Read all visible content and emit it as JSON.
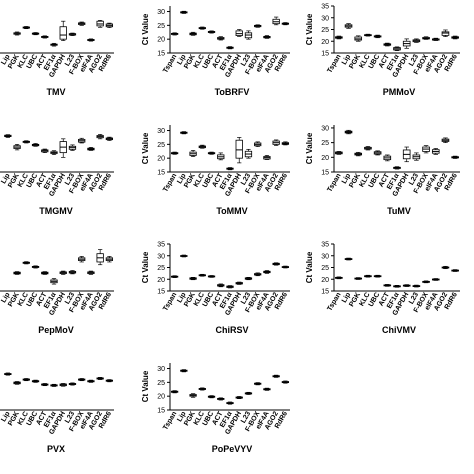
{
  "chart_data": [
    {
      "type": "box",
      "title": "TMV",
      "ylabel": "",
      "yticks": [],
      "ylim": [
        15,
        32
      ],
      "categories": [
        "Tspan",
        "Lip",
        "PGK",
        "KLC",
        "UBC",
        "ACT",
        "EF1α",
        "GAPDH",
        "L23",
        "F-BOX",
        "eIF4A",
        "AGO2",
        "RdR6"
      ],
      "boxes": [
        [
          null,
          null,
          null,
          null,
          null
        ],
        [
          null,
          null,
          null,
          null,
          null
        ],
        [
          21.5,
          21.8,
          22.0,
          22.3,
          22.6
        ],
        [
          23.8,
          24.0,
          24.2,
          24.4,
          24.6
        ],
        [
          21.6,
          21.8,
          22.0,
          22.2,
          22.4
        ],
        [
          20.4,
          20.6,
          20.8,
          21.0,
          21.2
        ],
        [
          17.5,
          17.8,
          18.0,
          18.2,
          18.5
        ],
        [
          19.5,
          20.0,
          21.5,
          24.5,
          26.5
        ],
        [
          21.3,
          21.5,
          21.8,
          22.0,
          22.2
        ],
        [
          25.0,
          25.3,
          25.6,
          25.9,
          26.2
        ],
        [
          19.3,
          19.5,
          19.7,
          19.9,
          20.1
        ],
        [
          24.3,
          24.8,
          25.5,
          26.5,
          26.8
        ],
        [
          24.2,
          24.5,
          25.0,
          25.5,
          25.8
        ]
      ]
    },
    {
      "type": "box",
      "title": "ToBRFV",
      "ylabel": "Ct Value",
      "yticks": [
        15,
        20,
        25,
        30
      ],
      "ylim": [
        15,
        32
      ],
      "categories": [
        "Tspan",
        "Lip",
        "PGK",
        "KLC",
        "UBC",
        "ACT",
        "EF1α",
        "GAPDH",
        "L23",
        "F-BOX",
        "eIF4A",
        "AGO2",
        "RdR6"
      ],
      "boxes": [
        [
          21.5,
          21.7,
          21.9,
          22.1,
          22.3
        ],
        [
          29.3,
          29.5,
          29.7,
          29.9,
          30.1
        ],
        [
          21.4,
          21.6,
          21.9,
          22.2,
          22.5
        ],
        [
          23.6,
          23.8,
          24.0,
          24.2,
          24.4
        ],
        [
          22.2,
          22.4,
          22.6,
          22.8,
          23.0
        ],
        [
          19.7,
          20.0,
          20.3,
          20.6,
          20.9
        ],
        [
          16.5,
          16.7,
          16.9,
          17.1,
          17.3
        ],
        [
          21.0,
          21.3,
          22.0,
          23.0,
          23.5
        ],
        [
          20.0,
          20.5,
          21.5,
          22.3,
          23.0
        ],
        [
          24.3,
          24.5,
          24.8,
          25.0,
          25.2
        ],
        [
          20.3,
          20.5,
          20.8,
          21.0,
          21.3
        ],
        [
          25.2,
          25.6,
          26.3,
          27.2,
          28.0
        ],
        [
          25.2,
          25.4,
          25.6,
          25.8,
          26.0
        ]
      ]
    },
    {
      "type": "box",
      "title": "PMMoV",
      "ylabel": "Ct Value",
      "yticks": [
        15,
        20,
        25,
        30,
        35
      ],
      "ylim": [
        15,
        35
      ],
      "categories": [
        "Tspan",
        "Lip",
        "PGK",
        "KLC",
        "UBC",
        "ACT",
        "EF1α",
        "GAPDH",
        "L23",
        "F-BOX",
        "eIF4A",
        "AGO2",
        "RdR6"
      ],
      "boxes": [
        [
          21.0,
          21.3,
          21.6,
          21.9,
          22.2
        ],
        [
          25.5,
          26.0,
          26.5,
          27.0,
          27.5
        ],
        [
          20.0,
          20.5,
          21.0,
          21.8,
          22.3
        ],
        [
          22.2,
          22.4,
          22.6,
          22.8,
          23.0
        ],
        [
          21.5,
          21.8,
          22.0,
          22.3,
          22.6
        ],
        [
          18.0,
          18.3,
          18.6,
          18.9,
          19.2
        ],
        [
          16.0,
          16.3,
          16.8,
          17.3,
          17.6
        ],
        [
          17.0,
          18.0,
          19.0,
          20.0,
          21.0
        ],
        [
          19.5,
          19.8,
          20.2,
          20.6,
          21.0
        ],
        [
          20.8,
          21.0,
          21.3,
          21.6,
          21.9
        ],
        [
          20.3,
          20.5,
          20.8,
          21.0,
          21.3
        ],
        [
          22.0,
          22.5,
          23.5,
          24.0,
          24.8
        ],
        [
          21.0,
          21.3,
          21.6,
          21.9,
          22.2
        ]
      ]
    },
    {
      "type": "box",
      "title": "TMGMV",
      "ylabel": "",
      "yticks": [],
      "ylim": [
        15,
        32
      ],
      "categories": [
        "Tspan",
        "Lip",
        "PGK",
        "KLC",
        "UBC",
        "ACT",
        "EF1α",
        "GAPDH",
        "L23",
        "F-BOX",
        "eIF4A",
        "AGO2",
        "RdR6"
      ],
      "boxes": [
        [
          null,
          null,
          null,
          null,
          null
        ],
        [
          27.5,
          27.8,
          28.0,
          28.3,
          28.5
        ],
        [
          23.0,
          23.5,
          24.0,
          24.5,
          25.0
        ],
        [
          25.5,
          25.7,
          25.9,
          26.1,
          26.3
        ],
        [
          24.3,
          24.5,
          24.8,
          25.0,
          25.3
        ],
        [
          22.0,
          22.3,
          22.7,
          23.0,
          23.3
        ],
        [
          21.3,
          21.7,
          22.0,
          22.3,
          22.7
        ],
        [
          20.3,
          22.0,
          24.0,
          26.0,
          27.0
        ],
        [
          22.8,
          23.2,
          23.8,
          24.3,
          24.8
        ],
        [
          25.5,
          25.8,
          26.3,
          26.8,
          27.2
        ],
        [
          22.8,
          23.0,
          23.3,
          23.6,
          23.9
        ],
        [
          27.0,
          27.4,
          27.8,
          28.2,
          28.6
        ],
        [
          26.4,
          26.7,
          27.0,
          27.3,
          27.6
        ]
      ]
    },
    {
      "type": "box",
      "title": "ToMMV",
      "ylabel": "Ct Value",
      "yticks": [
        15,
        20,
        25,
        30
      ],
      "ylim": [
        15,
        32
      ],
      "categories": [
        "Tspan",
        "Lip",
        "PGK",
        "KLC",
        "UBC",
        "ACT",
        "EF1α",
        "GAPDH",
        "L23",
        "F-BOX",
        "eIF4A",
        "AGO2",
        "RdR6"
      ],
      "boxes": [
        [
          21.4,
          21.6,
          21.8,
          22.0,
          22.2
        ],
        [
          28.8,
          29.0,
          29.2,
          29.4,
          29.6
        ],
        [
          20.6,
          21.0,
          21.6,
          22.2,
          22.8
        ],
        [
          23.6,
          23.8,
          24.1,
          24.4,
          24.7
        ],
        [
          21.4,
          21.6,
          21.8,
          22.0,
          22.2
        ],
        [
          19.4,
          19.8,
          20.5,
          21.2,
          21.9
        ],
        [
          15.8,
          16.0,
          16.2,
          16.4,
          16.6
        ],
        [
          18.3,
          20.0,
          23.0,
          26.5,
          27.5
        ],
        [
          20.0,
          20.5,
          21.5,
          22.5,
          23.2
        ],
        [
          24.2,
          24.5,
          25.0,
          25.5,
          25.9
        ],
        [
          19.5,
          19.7,
          20.2,
          20.6,
          21.0
        ],
        [
          24.6,
          25.0,
          25.6,
          26.2,
          26.6
        ],
        [
          24.8,
          25.0,
          25.3,
          25.6,
          25.9
        ]
      ]
    },
    {
      "type": "box",
      "title": "TuMV",
      "ylabel": "Ct Value",
      "yticks": [
        15,
        20,
        25,
        30
      ],
      "ylim": [
        15,
        31
      ],
      "categories": [
        "Tspan",
        "Lip",
        "PGK",
        "KLC",
        "UBC",
        "ACT",
        "EF1α",
        "GAPDH",
        "L23",
        "F-BOX",
        "eIF4A",
        "AGO2",
        "RdR6"
      ],
      "boxes": [
        [
          21.0,
          21.2,
          21.5,
          21.8,
          22.0
        ],
        [
          28.0,
          28.3,
          28.6,
          28.9,
          29.2
        ],
        [
          20.5,
          20.8,
          21.1,
          21.4,
          21.7
        ],
        [
          22.5,
          22.8,
          23.1,
          23.4,
          23.7
        ],
        [
          20.8,
          21.1,
          21.5,
          21.9,
          22.2
        ],
        [
          18.8,
          19.2,
          19.8,
          20.4,
          20.8
        ],
        [
          16.0,
          16.2,
          16.4,
          16.6,
          16.8
        ],
        [
          18.5,
          19.5,
          21.0,
          22.5,
          23.5
        ],
        [
          19.0,
          19.5,
          20.2,
          20.8,
          21.5
        ],
        [
          21.5,
          22.0,
          22.8,
          23.5,
          24.0
        ],
        [
          21.0,
          21.4,
          22.0,
          22.6,
          23.0
        ],
        [
          25.0,
          25.4,
          25.8,
          26.2,
          26.6
        ],
        [
          19.6,
          19.8,
          20.0,
          20.2,
          20.4
        ]
      ]
    },
    {
      "type": "box",
      "title": "PepMoV",
      "ylabel": "",
      "yticks": [],
      "ylim": [
        15,
        32
      ],
      "categories": [
        "Tspan",
        "Lip",
        "PGK",
        "KLC",
        "UBC",
        "ACT",
        "EF1α",
        "GAPDH",
        "L23",
        "F-BOX",
        "eIF4A",
        "AGO2",
        "RdR6"
      ],
      "boxes": [
        [
          null,
          null,
          null,
          null,
          null
        ],
        [
          null,
          null,
          null,
          null,
          null
        ],
        [
          21.0,
          21.2,
          21.5,
          21.8,
          22.0
        ],
        [
          24.8,
          25.0,
          25.2,
          25.4,
          25.6
        ],
        [
          23.3,
          23.5,
          23.7,
          23.9,
          24.1
        ],
        [
          21.0,
          21.2,
          21.5,
          21.8,
          22.0
        ],
        [
          17.5,
          18.0,
          18.5,
          19.0,
          19.5
        ],
        [
          21.0,
          21.3,
          21.6,
          21.9,
          22.2
        ],
        [
          21.2,
          21.5,
          21.8,
          22.1,
          22.4
        ],
        [
          25.5,
          26.0,
          26.5,
          27.0,
          27.5
        ],
        [
          21.0,
          21.3,
          21.6,
          21.9,
          22.2
        ],
        [
          24.5,
          25.5,
          27.0,
          28.5,
          30.0
        ],
        [
          25.5,
          26.0,
          26.5,
          27.0,
          27.5
        ]
      ]
    },
    {
      "type": "box",
      "title": "ChiRSV",
      "ylabel": "Ct Value",
      "yticks": [
        15,
        20,
        25,
        30,
        35
      ],
      "ylim": [
        15,
        35
      ],
      "categories": [
        "Tspan",
        "Lip",
        "PGK",
        "KLC",
        "UBC",
        "ACT",
        "EF1α",
        "GAPDH",
        "L23",
        "F-BOX",
        "eIF4A",
        "AGO2",
        "RdR6"
      ],
      "boxes": [
        [
          20.7,
          20.9,
          21.1,
          21.3,
          21.5
        ],
        [
          29.5,
          29.7,
          29.9,
          30.1,
          30.3
        ],
        [
          19.8,
          20.0,
          20.3,
          20.6,
          20.8
        ],
        [
          21.3,
          21.5,
          21.7,
          21.9,
          22.1
        ],
        [
          20.8,
          21.0,
          21.2,
          21.4,
          21.6
        ],
        [
          16.8,
          17.1,
          17.4,
          17.7,
          18.0
        ],
        [
          16.3,
          16.5,
          16.8,
          17.1,
          17.3
        ],
        [
          17.8,
          18.0,
          18.3,
          18.6,
          18.8
        ],
        [
          19.8,
          20.0,
          20.3,
          20.6,
          20.8
        ],
        [
          21.5,
          21.8,
          22.1,
          22.4,
          22.7
        ],
        [
          22.5,
          22.8,
          23.1,
          23.4,
          23.7
        ],
        [
          26.0,
          26.2,
          26.5,
          26.8,
          27.0
        ],
        [
          24.8,
          25.0,
          25.2,
          25.4,
          25.6
        ]
      ]
    },
    {
      "type": "box",
      "title": "ChiVMV",
      "ylabel": "Ct Value",
      "yticks": [
        15,
        20,
        25,
        30,
        35
      ],
      "ylim": [
        15,
        35
      ],
      "categories": [
        "Tspan",
        "Lip",
        "PGK",
        "KLC",
        "UBC",
        "ACT",
        "EF1α",
        "GAPDH",
        "L23",
        "F-BOX",
        "eIF4A",
        "AGO2",
        "RdR6"
      ],
      "boxes": [
        [
          20.2,
          20.4,
          20.6,
          20.8,
          21.0
        ],
        [
          28.2,
          28.4,
          28.6,
          28.8,
          29.0
        ],
        [
          19.9,
          20.1,
          20.3,
          20.5,
          20.7
        ],
        [
          20.9,
          21.1,
          21.3,
          21.5,
          21.7
        ],
        [
          20.9,
          21.1,
          21.3,
          21.5,
          21.7
        ],
        [
          17.0,
          17.2,
          17.4,
          17.6,
          17.8
        ],
        [
          16.6,
          16.8,
          17.0,
          17.2,
          17.4
        ],
        [
          16.9,
          17.1,
          17.3,
          17.5,
          17.7
        ],
        [
          16.7,
          16.9,
          17.1,
          17.3,
          17.5
        ],
        [
          18.5,
          18.7,
          18.9,
          19.1,
          19.3
        ],
        [
          19.5,
          19.7,
          19.9,
          20.1,
          20.3
        ],
        [
          24.5,
          24.8,
          25.0,
          25.2,
          25.5
        ],
        [
          23.3,
          23.5,
          23.7,
          23.9,
          24.1
        ]
      ]
    },
    {
      "type": "box",
      "title": "PVX",
      "ylabel": "",
      "yticks": [],
      "ylim": [
        15,
        32
      ],
      "categories": [
        "Tspan",
        "Lip",
        "PGK",
        "KLC",
        "UBC",
        "ACT",
        "EF1α",
        "GAPDH",
        "L23",
        "F-BOX",
        "eIF4A",
        "AGO2",
        "RdR6"
      ],
      "boxes": [
        [
          null,
          null,
          null,
          null,
          null
        ],
        [
          27.6,
          27.8,
          28.0,
          28.2,
          28.4
        ],
        [
          24.3,
          24.5,
          24.8,
          25.1,
          25.3
        ],
        [
          25.6,
          25.8,
          26.0,
          26.2,
          26.4
        ],
        [
          25.0,
          25.2,
          25.4,
          25.6,
          25.8
        ],
        [
          23.8,
          24.0,
          24.2,
          24.4,
          24.6
        ],
        [
          23.5,
          23.7,
          23.9,
          24.1,
          24.3
        ],
        [
          23.6,
          23.8,
          24.1,
          24.4,
          24.6
        ],
        [
          24.0,
          24.2,
          24.4,
          24.6,
          24.8
        ],
        [
          25.6,
          25.8,
          26.0,
          26.2,
          26.4
        ],
        [
          25.0,
          25.2,
          25.4,
          25.6,
          25.8
        ],
        [
          26.0,
          26.2,
          26.4,
          26.6,
          26.8
        ],
        [
          25.2,
          25.4,
          25.6,
          25.8,
          26.0
        ]
      ]
    },
    {
      "type": "box",
      "title": "PoPeVYV",
      "ylabel": "Ct Value",
      "yticks": [
        15,
        20,
        25,
        30
      ],
      "ylim": [
        15,
        32
      ],
      "categories": [
        "Tspan",
        "Lip",
        "PGK",
        "KLC",
        "UBC",
        "ACT",
        "EF1α",
        "GAPDH",
        "L23",
        "F-BOX",
        "eIF4A",
        "AGO2",
        "RdR6"
      ],
      "boxes": [
        [
          21.2,
          21.4,
          21.6,
          21.8,
          22.0
        ],
        [
          28.8,
          29.0,
          29.2,
          29.4,
          29.6
        ],
        [
          19.6,
          20.0,
          20.3,
          20.6,
          20.9
        ],
        [
          22.2,
          22.4,
          22.6,
          22.8,
          23.0
        ],
        [
          19.4,
          19.6,
          19.8,
          20.0,
          20.2
        ],
        [
          18.6,
          18.8,
          19.0,
          19.2,
          19.4
        ],
        [
          17.1,
          17.3,
          17.5,
          17.7,
          17.9
        ],
        [
          19.1,
          19.3,
          19.5,
          19.7,
          19.9
        ],
        [
          20.6,
          20.8,
          21.0,
          21.2,
          21.4
        ],
        [
          24.1,
          24.3,
          24.5,
          24.7,
          24.9
        ],
        [
          22.1,
          22.3,
          22.5,
          22.7,
          22.9
        ],
        [
          26.8,
          27.0,
          27.2,
          27.4,
          27.6
        ],
        [
          24.7,
          24.9,
          25.1,
          25.3,
          25.5
        ]
      ]
    }
  ]
}
